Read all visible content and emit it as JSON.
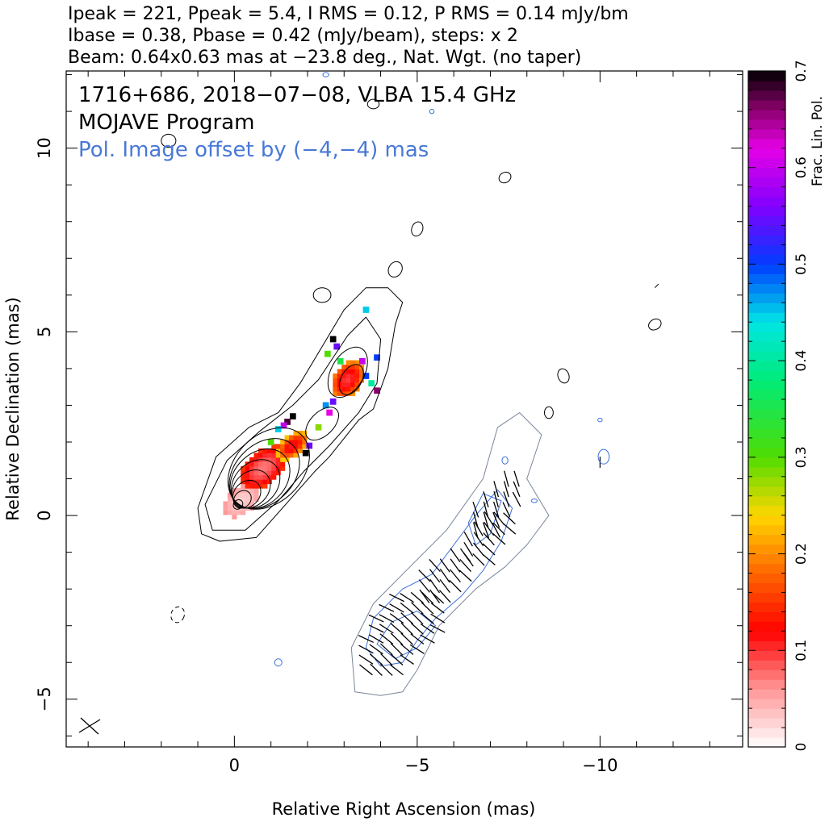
{
  "header": {
    "line1": "Ipeak = 221, Ppeak = 5.4, I RMS = 0.12, P RMS = 0.14 mJy/bm",
    "line2": "Ibase = 0.38, Pbase = 0.42 (mJy/beam), steps: x 2",
    "line3": "Beam: 0.64x0.63 mas at −23.8 deg., Nat. Wgt. (no taper)"
  },
  "annotations": {
    "source_line": "1716+686, 2018−07−08, VLBA 15.4 GHz",
    "program": "MOJAVE Program",
    "offset_note": "Pol. Image offset by (−4,−4) mas"
  },
  "colors": {
    "total_intensity_contours": "#000000",
    "pol_contours_outer": "#7a8699",
    "pol_contours_inner": "#3c6fd6",
    "annotation_blue": "#4a78d6"
  },
  "chart_data": {
    "type": "contour",
    "xlabel": "Relative Right Ascension (mas)",
    "ylabel": "Relative Declination (mas)",
    "xlim": [
      4.6,
      -13.9
    ],
    "ylim": [
      -6.3,
      12.1
    ],
    "x_ticks": [
      0,
      -5,
      -10
    ],
    "x_tick_labels": [
      "0",
      "−5",
      "−10"
    ],
    "y_ticks": [
      -5,
      0,
      5,
      10
    ],
    "y_tick_labels": [
      "−5",
      "0",
      "5",
      "10"
    ],
    "colorbar": {
      "label": "Frac. Lin. Pol.",
      "range": [
        0,
        0.7
      ],
      "ticks": [
        0,
        0.1,
        0.2,
        0.3,
        0.4,
        0.5,
        0.6,
        0.7
      ],
      "tick_labels": [
        "0",
        "0.1",
        "0.2",
        "0.3",
        "0.4",
        "0.5",
        "0.6",
        "0.7"
      ]
    },
    "stokes_i_core": {
      "ra": -0.1,
      "dec": 0.3
    },
    "stokes_i_contour_levels_mjy": [
      0.38,
      0.76,
      1.52,
      3.04,
      6.08,
      12.16,
      24.32,
      48.64,
      97.28,
      194.56
    ],
    "pol_image_offset_mas": [
      -4,
      -4
    ],
    "peak_intensity_mjy_per_beam": 221,
    "peak_pol_mjy_per_beam": 5.4
  }
}
